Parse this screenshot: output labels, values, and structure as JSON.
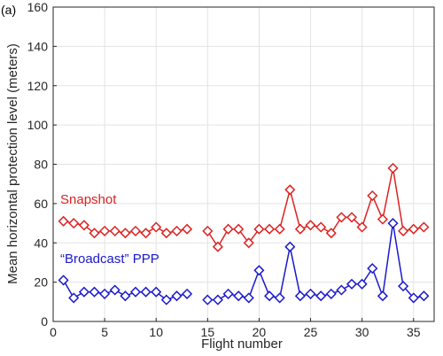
{
  "panel_label": "(a)",
  "chart_data": {
    "type": "line",
    "xlabel": "Flight number",
    "ylabel": "Mean horizontal protection level (meters)",
    "xlim": [
      0,
      37
    ],
    "ylim": [
      0,
      160
    ],
    "x_ticks": [
      0,
      5,
      10,
      15,
      20,
      25,
      30,
      35
    ],
    "y_ticks": [
      0,
      20,
      40,
      60,
      80,
      100,
      120,
      140,
      160
    ],
    "grid": true,
    "marker": "diamond",
    "series": [
      {
        "name": "Snapshot",
        "color": "#dd2222",
        "x": [
          1,
          2,
          3,
          4,
          5,
          6,
          7,
          8,
          9,
          10,
          11,
          12,
          13,
          15,
          16,
          17,
          18,
          19,
          20,
          21,
          22,
          23,
          24,
          25,
          26,
          27,
          28,
          29,
          30,
          31,
          32,
          33,
          34,
          35,
          36
        ],
        "y": [
          51,
          50,
          49,
          45,
          46,
          46,
          45,
          46,
          45,
          48,
          45,
          46,
          47,
          46,
          38,
          47,
          47,
          40,
          47,
          47,
          47,
          67,
          47,
          49,
          48,
          45,
          53,
          53,
          48,
          64,
          52,
          78,
          46,
          47,
          48
        ]
      },
      {
        "name": "“Broadcast” PPP",
        "color": "#1a1acc",
        "x": [
          1,
          2,
          3,
          4,
          5,
          6,
          7,
          8,
          9,
          10,
          11,
          12,
          13,
          15,
          16,
          17,
          18,
          19,
          20,
          21,
          22,
          23,
          24,
          25,
          26,
          27,
          28,
          29,
          30,
          31,
          32,
          33,
          34,
          35,
          36
        ],
        "y": [
          21,
          12,
          15,
          15,
          14,
          16,
          13,
          15,
          15,
          15,
          11,
          13,
          14,
          11,
          11,
          14,
          13,
          12,
          26,
          13,
          12,
          38,
          13,
          14,
          13,
          14,
          16,
          19,
          19,
          27,
          13,
          50,
          18,
          12,
          13
        ]
      }
    ]
  }
}
